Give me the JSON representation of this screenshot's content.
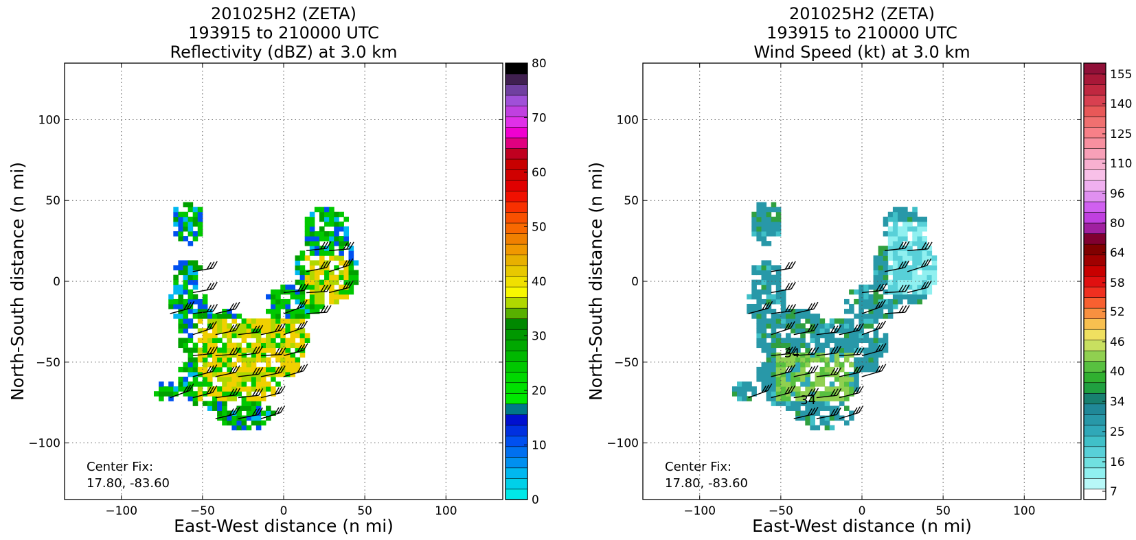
{
  "charts": [
    {
      "title": [
        "201025H2 (ZETA)",
        "193915 to 210000 UTC",
        "Reflectivity (dBZ) at 3.0 km"
      ],
      "xlabel": "East-West distance (n mi)",
      "ylabel": "North-South distance (n mi)",
      "center_fix": [
        "Center Fix:",
        "17.80, -83.60"
      ],
      "colorbar": {
        "min": 0,
        "max": 80,
        "colors": [
          "#00e8e8",
          "#00d0e8",
          "#00b8f0",
          "#0090f0",
          "#0070f0",
          "#0050f0",
          "#0030e0",
          "#0010d0",
          "#007888",
          "#00e800",
          "#00e000",
          "#00d800",
          "#00c800",
          "#00b800",
          "#00a800",
          "#009800",
          "#008800",
          "#58b000",
          "#b0d800",
          "#f8f800",
          "#f0e000",
          "#e8c800",
          "#e8b000",
          "#f09800",
          "#f08000",
          "#f86800",
          "#f85000",
          "#f83000",
          "#f01000",
          "#e00000",
          "#d00000",
          "#c80000",
          "#c00020",
          "#e00080",
          "#f000d0",
          "#e030e8",
          "#c040e0",
          "#a050d8",
          "#7040a0",
          "#402050",
          "#000000"
        ],
        "ticks": [
          "0",
          "10",
          "20",
          "30",
          "40",
          "50",
          "60",
          "70",
          "80"
        ]
      }
    },
    {
      "title": [
        "201025H2 (ZETA)",
        "193915 to 210000 UTC",
        "Wind Speed (kt) at 3.0 km"
      ],
      "xlabel": "East-West distance (n mi)",
      "ylabel": "North-South distance (n mi)",
      "center_fix": [
        "Center Fix:",
        "17.80, -83.60"
      ],
      "colorbar": {
        "colors": [
          "#ffffff",
          "#b8f8f8",
          "#90f0f0",
          "#70e0e0",
          "#58d0d8",
          "#40c0c8",
          "#30a8b8",
          "#2898a8",
          "#208898",
          "#188070",
          "#20a040",
          "#30b030",
          "#58c040",
          "#90d050",
          "#c8e060",
          "#f0e060",
          "#f8c050",
          "#f89040",
          "#f86030",
          "#f03020",
          "#e01010",
          "#c80000",
          "#a00000",
          "#800000",
          "#800030",
          "#a020a0",
          "#c040e0",
          "#d060f0",
          "#e090f0",
          "#f0b0f0",
          "#f8c0e8",
          "#f8b0d0",
          "#f8a0b8",
          "#f890a0",
          "#f88088",
          "#f07070",
          "#e85858",
          "#d84050",
          "#c02840",
          "#a81838",
          "#901038"
        ],
        "ticks": [
          "7",
          "16",
          "25",
          "34",
          "40",
          "46",
          "52",
          "58",
          "64",
          "80",
          "96",
          "110",
          "125",
          "140",
          "155"
        ]
      },
      "contour_labels": [
        "34",
        "34"
      ]
    }
  ],
  "chart_data": [
    {
      "type": "heatmap",
      "title": "201025H2 (ZETA) 193915 to 210000 UTC Reflectivity (dBZ) at 3.0 km",
      "xlabel": "East-West distance (n mi)",
      "ylabel": "North-South distance (n mi)",
      "xlim": [
        -135,
        135
      ],
      "ylim": [
        -135,
        135
      ],
      "xticks": [
        -100,
        -50,
        0,
        50,
        100
      ],
      "yticks": [
        -100,
        -50,
        0,
        50,
        100
      ],
      "grid": true,
      "colorbar_range": [
        0,
        80
      ]
    },
    {
      "type": "heatmap",
      "title": "201025H2 (ZETA) 193915 to 210000 UTC Wind Speed (kt) at 3.0 km",
      "xlabel": "East-West distance (n mi)",
      "ylabel": "North-South distance (n mi)",
      "xlim": [
        -135,
        135
      ],
      "ylim": [
        -135,
        135
      ],
      "xticks": [
        -100,
        -50,
        0,
        50,
        100
      ],
      "yticks": [
        -100,
        -50,
        0,
        50,
        100
      ],
      "grid": true,
      "colorbar_range": [
        7,
        160
      ]
    }
  ]
}
